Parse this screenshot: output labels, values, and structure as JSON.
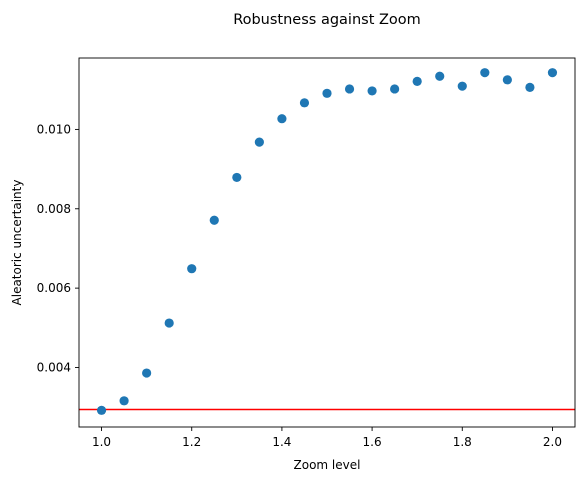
{
  "chart_data": {
    "type": "scatter",
    "title": "Robustness against Zoom",
    "xlabel": "Zoom level",
    "ylabel": "Aleatoric uncertainty",
    "xlim": [
      0.95,
      2.05
    ],
    "ylim": [
      0.0025,
      0.0118
    ],
    "xticks": [
      1.0,
      1.2,
      1.4,
      1.6,
      1.8,
      2.0
    ],
    "xtick_labels": [
      "1.0",
      "1.2",
      "1.4",
      "1.6",
      "1.8",
      "2.0"
    ],
    "yticks": [
      0.004,
      0.006,
      0.008,
      0.01
    ],
    "ytick_labels": [
      "0.004",
      "0.006",
      "0.008",
      "0.010"
    ],
    "grid": false,
    "series": [
      {
        "color": "#1f77b4",
        "marker": "circle",
        "x": [
          1.0,
          1.05,
          1.1,
          1.15,
          1.2,
          1.25,
          1.3,
          1.35,
          1.4,
          1.45,
          1.5,
          1.55,
          1.6,
          1.65,
          1.7,
          1.75,
          1.8,
          1.85,
          1.9,
          1.95,
          2.0
        ],
        "y": [
          0.00292,
          0.00316,
          0.00386,
          0.00512,
          0.00649,
          0.00771,
          0.00879,
          0.00968,
          0.01027,
          0.01067,
          0.01091,
          0.01102,
          0.01097,
          0.01102,
          0.01121,
          0.01134,
          0.01109,
          0.01143,
          0.01125,
          0.01106,
          0.01143
        ]
      }
    ],
    "reference_line": {
      "orientation": "horizontal",
      "y": 0.00294,
      "color": "#ff0000"
    }
  }
}
